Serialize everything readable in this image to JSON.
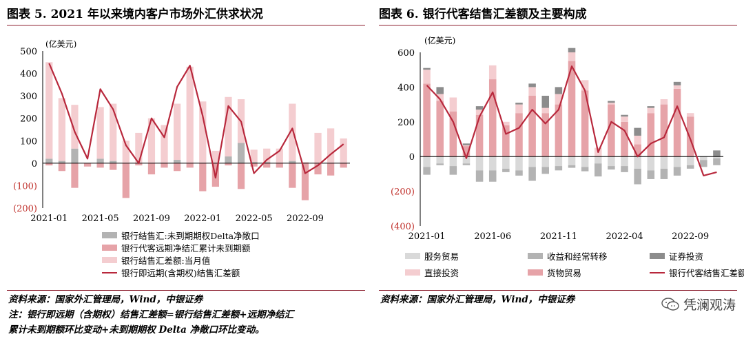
{
  "left": {
    "title": "图表 5. 2021 年以来境内客户市场外汇供求状况",
    "source": "资料来源：国家外汇管理局，Wind，中银证券",
    "note_line1": "注：银行即远期（含期权）结售汇差额=银行结售汇差额+远期净结汇",
    "note_line2": "累计未到期额环比变动+未到期期权 Delta 净敞口环比变动。"
  },
  "right": {
    "title": "图表 6. 银行代客结售汇差额及主要构成",
    "source": "资料来源：国家外汇管理局，Wind，中银证券"
  },
  "watermark": "凭澜观涛",
  "colors": {
    "dark_red": "#b8283c",
    "rule": "#8b1c2c",
    "light_pink": "#f4cdd0",
    "mid_pink": "#e6a3a8",
    "light_gray": "#d9d9d9",
    "mid_gray": "#b3b3b3",
    "dark_gray": "#8c8c8c"
  },
  "chart_data": [
    {
      "type": "bar",
      "title": "",
      "unit_label": "(亿美元)",
      "ylim": [
        -200,
        500
      ],
      "yticks": [
        500,
        400,
        300,
        200,
        100,
        0,
        -100,
        -200
      ],
      "ytick_labels": [
        "500",
        "400",
        "300",
        "200",
        "100",
        "0",
        "(100)",
        "(200)"
      ],
      "categories": [
        "2021-01",
        "2021-02",
        "2021-03",
        "2021-04",
        "2021-05",
        "2021-06",
        "2021-07",
        "2021-08",
        "2021-09",
        "2021-10",
        "2021-11",
        "2021-12",
        "2022-01",
        "2022-02",
        "2022-03",
        "2022-04",
        "2022-05",
        "2022-06",
        "2022-07",
        "2022-08",
        "2022-09",
        "2022-10",
        "2022-11",
        "2022-12"
      ],
      "xtick_labels": [
        "2021-01",
        "2021-05",
        "2021-09",
        "2022-01",
        "2022-05",
        "2022-09"
      ],
      "xtick_index": [
        0,
        4,
        8,
        12,
        16,
        20
      ],
      "series": [
        {
          "name": "银行结售汇:未到期期权Delta净敞口",
          "kind": "bar",
          "color": "#b3b3b3",
          "values": [
            20,
            10,
            65,
            0,
            20,
            10,
            0,
            0,
            0,
            0,
            15,
            0,
            0,
            0,
            30,
            90,
            5,
            5,
            0,
            10,
            0,
            0,
            0,
            0
          ]
        },
        {
          "name": "银行代客远期净结汇累计未到期额",
          "kind": "bar",
          "color": "#e6a3a8",
          "values": [
            -10,
            -35,
            -110,
            -15,
            -20,
            -30,
            -155,
            -10,
            -50,
            -20,
            -35,
            -20,
            -125,
            -105,
            -10,
            -115,
            -15,
            -20,
            -20,
            -110,
            -165,
            -50,
            -55,
            -20
          ]
        },
        {
          "name": "银行结售汇差额:当月值",
          "kind": "bar",
          "color": "#f4cdd0",
          "values": [
            430,
            280,
            195,
            0,
            230,
            255,
            100,
            135,
            200,
            170,
            250,
            430,
            275,
            55,
            265,
            195,
            55,
            60,
            65,
            255,
            5,
            135,
            155,
            110
          ]
        },
        {
          "name": "银行即远期(含期权)结售汇差额",
          "kind": "line",
          "color": "#b8283c",
          "values": [
            445,
            310,
            140,
            20,
            330,
            240,
            80,
            0,
            200,
            115,
            340,
            435,
            210,
            -65,
            255,
            185,
            -45,
            15,
            55,
            155,
            -45,
            -10,
            40,
            85
          ]
        }
      ]
    },
    {
      "type": "bar",
      "title": "",
      "unit_label": "(亿美元)",
      "ylim": [
        -400,
        600
      ],
      "yticks": [
        600,
        400,
        200,
        0,
        -200,
        -400
      ],
      "ytick_labels": [
        "600",
        "400",
        "200",
        "0",
        "(200)",
        "(400)"
      ],
      "categories": [
        "2021-01",
        "2021-02",
        "2021-03",
        "2021-04",
        "2021-05",
        "2021-06",
        "2021-07",
        "2021-08",
        "2021-09",
        "2021-10",
        "2021-11",
        "2021-12",
        "2022-01",
        "2022-02",
        "2022-03",
        "2022-04",
        "2022-05",
        "2022-06",
        "2022-07",
        "2022-08",
        "2022-09",
        "2022-10",
        "2022-11"
      ],
      "xtick_labels": [
        "2021-01",
        "2021-06",
        "2021-11",
        "2022-04",
        "2022-09"
      ],
      "xtick_index": [
        0,
        5,
        10,
        15,
        20
      ],
      "series": [
        {
          "name": "服务贸易",
          "kind": "bar",
          "color": "#d9d9d9",
          "pos": [
            0,
            0,
            0,
            0,
            0,
            0,
            0,
            0,
            0,
            0,
            0,
            0,
            0,
            0,
            0,
            0,
            0,
            0,
            0,
            0,
            0,
            0,
            0
          ],
          "neg": [
            -60,
            -40,
            -55,
            -40,
            -80,
            -80,
            -70,
            -80,
            -60,
            -60,
            -55,
            -50,
            -60,
            -40,
            -55,
            -55,
            -70,
            -80,
            -70,
            -60,
            -50,
            -20,
            -10
          ]
        },
        {
          "name": "收益和经常转移",
          "kind": "bar",
          "color": "#b3b3b3",
          "pos": [
            0,
            0,
            0,
            0,
            0,
            0,
            0,
            0,
            0,
            0,
            0,
            0,
            0,
            0,
            0,
            0,
            0,
            0,
            0,
            0,
            0,
            0,
            0
          ],
          "neg": [
            -45,
            -10,
            -50,
            -10,
            -65,
            -65,
            -20,
            -30,
            -80,
            -40,
            -25,
            -15,
            -25,
            -75,
            -20,
            -35,
            -90,
            -50,
            -60,
            -50,
            -20,
            -40,
            -40
          ]
        },
        {
          "name": "证券投资",
          "kind": "bar",
          "color": "#8c8c8c",
          "pos": [
            10,
            40,
            0,
            10,
            20,
            0,
            0,
            10,
            20,
            70,
            40,
            25,
            0,
            0,
            10,
            10,
            45,
            10,
            0,
            20,
            0,
            0,
            35
          ],
          "neg": [
            0,
            0,
            0,
            0,
            0,
            0,
            0,
            0,
            0,
            0,
            0,
            0,
            0,
            0,
            0,
            0,
            0,
            0,
            0,
            0,
            0,
            0,
            0
          ]
        },
        {
          "name": "直接投资",
          "kind": "bar",
          "color": "#f4cdd0",
          "pos": [
            80,
            40,
            80,
            5,
            30,
            80,
            20,
            50,
            50,
            30,
            60,
            50,
            60,
            50,
            10,
            30,
            50,
            30,
            30,
            20,
            20,
            0,
            0
          ],
          "neg": [
            0,
            0,
            0,
            0,
            0,
            0,
            0,
            0,
            0,
            0,
            0,
            0,
            0,
            0,
            0,
            0,
            0,
            0,
            0,
            0,
            0,
            0,
            0
          ]
        },
        {
          "name": "货物贸易",
          "kind": "bar",
          "color": "#e6a3a8",
          "pos": [
            420,
            320,
            260,
            60,
            240,
            445,
            180,
            250,
            350,
            250,
            300,
            550,
            380,
            0,
            300,
            200,
            70,
            250,
            300,
            390,
            230,
            0,
            0
          ],
          "neg": [
            0,
            0,
            0,
            0,
            0,
            0,
            0,
            0,
            0,
            0,
            0,
            0,
            0,
            0,
            0,
            0,
            0,
            0,
            0,
            0,
            0,
            0,
            0
          ]
        },
        {
          "name": "银行代客结售汇差额",
          "kind": "line",
          "color": "#b8283c",
          "values": [
            410,
            330,
            200,
            -10,
            230,
            370,
            130,
            165,
            270,
            190,
            270,
            520,
            380,
            25,
            200,
            150,
            0,
            75,
            110,
            290,
            100,
            -110,
            -90
          ]
        }
      ]
    }
  ]
}
